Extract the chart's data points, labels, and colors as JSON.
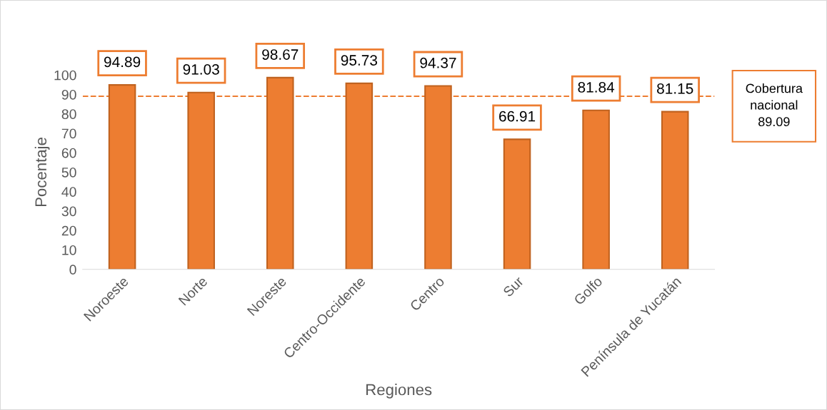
{
  "chart_data": {
    "type": "bar",
    "xlabel": "Regiones",
    "ylabel": "Pocentaje",
    "categories": [
      "Noroeste",
      "Norte",
      "Noreste",
      "Centro-Occidente",
      "Centro",
      "Sur",
      "Golfo",
      "Península de Yucatán"
    ],
    "values": [
      94.89,
      91.03,
      98.67,
      95.73,
      94.37,
      66.91,
      81.84,
      81.15
    ],
    "color": "#ed7d31",
    "ylim": [
      0,
      100
    ],
    "yticks": [
      0,
      10,
      20,
      30,
      40,
      50,
      60,
      70,
      80,
      90,
      100
    ],
    "grid": false,
    "data_labels": true,
    "ref_lines": [
      {
        "axis": "y",
        "value": 89.09,
        "label": "Cobertura\nnacional\n89.09",
        "color": "#ed7d31",
        "line_style": "dashed"
      }
    ]
  }
}
